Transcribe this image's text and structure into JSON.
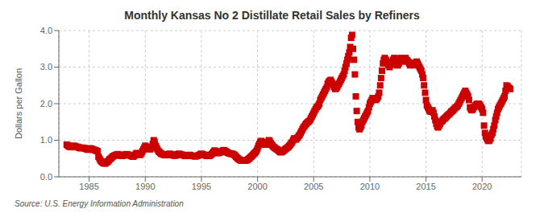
{
  "chart_data": {
    "type": "scatter",
    "title": "Monthly Kansas No 2 Distillate Retail Sales by Refiners",
    "ylabel": "Dollars per Gallon",
    "source": "Source: U.S. Energy Information Administration",
    "color": "#cc0000",
    "marker": "square",
    "grid": true,
    "xlim": [
      1982.3,
      2023.5
    ],
    "xticks": [
      1985,
      1990,
      1995,
      2000,
      2005,
      2010,
      2015,
      2020
    ],
    "ylim": [
      0.0,
      4.0
    ],
    "yticks": [
      {
        "value": 0.0,
        "label": "0.0"
      },
      {
        "value": 1.0,
        "label": "1.0"
      },
      {
        "value": 2.0,
        "label": "2.0"
      },
      {
        "value": 3.0,
        "label": "3.0"
      },
      {
        "value": 4.0,
        "label": "4.0"
      }
    ],
    "x": [
      1983.0,
      1983.08,
      1983.17,
      1983.25,
      1983.33,
      1983.42,
      1983.5,
      1983.58,
      1983.67,
      1983.75,
      1983.83,
      1983.92,
      1984.0,
      1984.08,
      1984.17,
      1984.25,
      1984.33,
      1984.42,
      1984.5,
      1984.58,
      1984.67,
      1984.75,
      1984.83,
      1984.92,
      1985.0,
      1985.08,
      1985.17,
      1985.25,
      1985.33,
      1985.42,
      1985.5,
      1985.58,
      1985.67,
      1985.75,
      1985.83,
      1985.92,
      1986.0,
      1986.08,
      1986.17,
      1986.25,
      1986.33,
      1986.42,
      1986.5,
      1986.58,
      1986.67,
      1986.75,
      1986.83,
      1986.92,
      1987.0,
      1987.08,
      1987.17,
      1987.25,
      1987.33,
      1987.42,
      1987.5,
      1987.58,
      1987.67,
      1987.75,
      1987.83,
      1987.92,
      1988.0,
      1988.08,
      1988.17,
      1988.25,
      1988.33,
      1988.42,
      1988.5,
      1988.58,
      1988.67,
      1988.75,
      1988.83,
      1988.92,
      1989.0,
      1989.08,
      1989.17,
      1989.25,
      1989.33,
      1989.42,
      1989.5,
      1989.58,
      1989.67,
      1989.75,
      1989.83,
      1989.92,
      1990.0,
      1990.08,
      1990.17,
      1990.25,
      1990.33,
      1990.42,
      1990.5,
      1990.58,
      1990.67,
      1990.75,
      1990.83,
      1990.92,
      1991.0,
      1991.08,
      1991.17,
      1991.25,
      1991.33,
      1991.42,
      1991.5,
      1991.58,
      1991.67,
      1991.75,
      1991.83,
      1991.92,
      1992.0,
      1992.08,
      1992.17,
      1992.25,
      1992.33,
      1992.42,
      1992.5,
      1992.58,
      1992.67,
      1992.75,
      1992.83,
      1992.92,
      1993.0,
      1993.08,
      1993.17,
      1993.25,
      1993.33,
      1993.42,
      1993.5,
      1993.58,
      1993.67,
      1993.75,
      1993.83,
      1993.92,
      1994.0,
      1994.08,
      1994.17,
      1994.25,
      1994.33,
      1994.42,
      1994.5,
      1994.58,
      1994.67,
      1994.75,
      1994.83,
      1994.92,
      1995.0,
      1995.08,
      1995.17,
      1995.25,
      1995.33,
      1995.42,
      1995.5,
      1995.58,
      1995.67,
      1995.75,
      1995.83,
      1995.92,
      1996.0,
      1996.08,
      1996.17,
      1996.25,
      1996.33,
      1996.42,
      1996.5,
      1996.58,
      1996.67,
      1996.75,
      1996.83,
      1996.92,
      1997.0,
      1997.08,
      1997.17,
      1997.25,
      1997.33,
      1997.42,
      1997.5,
      1997.58,
      1997.67,
      1997.75,
      1997.83,
      1997.92,
      1998.0,
      1998.08,
      1998.17,
      1998.25,
      1998.33,
      1998.42,
      1998.5,
      1998.58,
      1998.67,
      1998.75,
      1998.83,
      1998.92,
      1999.0,
      1999.08,
      1999.17,
      1999.25,
      1999.33,
      1999.42,
      1999.5,
      1999.58,
      1999.67,
      1999.75,
      1999.83,
      1999.92,
      2000.0,
      2000.08,
      2000.17,
      2000.25,
      2000.33,
      2000.42,
      2000.5,
      2000.58,
      2000.67,
      2000.75,
      2000.83,
      2000.92,
      2001.0,
      2001.08,
      2001.17,
      2001.25,
      2001.33,
      2001.42,
      2001.5,
      2001.58,
      2001.67,
      2001.75,
      2001.83,
      2001.92,
      2002.0,
      2002.08,
      2002.17,
      2002.25,
      2002.33,
      2002.42,
      2002.5,
      2002.58,
      2002.67,
      2002.75,
      2002.83,
      2002.92,
      2003.0,
      2003.08,
      2003.17,
      2003.25,
      2003.33,
      2003.42,
      2003.5,
      2003.58,
      2003.67,
      2003.75,
      2003.83,
      2003.92,
      2004.0,
      2004.08,
      2004.17,
      2004.25,
      2004.33,
      2004.42,
      2004.5,
      2004.58,
      2004.67,
      2004.75,
      2004.83,
      2004.92,
      2005.0,
      2005.08,
      2005.17,
      2005.25,
      2005.33,
      2005.42,
      2005.5,
      2005.58,
      2005.67,
      2005.75,
      2005.83,
      2005.92,
      2006.0,
      2006.08,
      2006.17,
      2006.25,
      2006.33,
      2006.42,
      2006.5,
      2006.58,
      2006.67,
      2006.75,
      2006.83,
      2006.92,
      2007.0,
      2007.08,
      2007.17,
      2007.25,
      2007.33,
      2007.42,
      2007.5,
      2007.58,
      2007.67,
      2007.75,
      2007.83,
      2007.92,
      2008.0,
      2008.08,
      2008.17,
      2008.25,
      2008.33,
      2008.42,
      2008.5,
      2008.58,
      2008.67,
      2008.75,
      2008.83,
      2008.92,
      2009.0,
      2009.08,
      2009.17,
      2009.25,
      2009.33,
      2009.42,
      2009.5,
      2009.58,
      2009.67,
      2009.75,
      2009.83,
      2009.92,
      2010.0,
      2010.08,
      2010.17,
      2010.25,
      2010.33,
      2010.42,
      2010.5,
      2010.58,
      2010.67,
      2010.75,
      2010.83,
      2010.92,
      2011.0,
      2011.08,
      2011.17,
      2011.25,
      2011.33,
      2011.42,
      2011.5,
      2011.58,
      2011.67,
      2011.75,
      2011.83,
      2011.92,
      2012.0,
      2012.08,
      2012.17,
      2012.25,
      2012.33,
      2012.42,
      2012.5,
      2012.58,
      2012.67,
      2012.75,
      2012.83,
      2012.92,
      2013.0,
      2013.08,
      2013.17,
      2013.25,
      2013.33,
      2013.42,
      2013.5,
      2013.58,
      2013.67,
      2013.75,
      2013.83,
      2013.92,
      2014.0,
      2014.08,
      2014.17,
      2014.25,
      2014.33,
      2014.42,
      2014.5,
      2014.58,
      2014.67,
      2014.75,
      2014.83,
      2014.92,
      2015.0,
      2015.08,
      2015.17,
      2015.25,
      2015.33,
      2015.42,
      2015.5,
      2015.58,
      2015.67,
      2015.75,
      2015.83,
      2015.92,
      2016.0,
      2016.08,
      2016.17,
      2016.25,
      2016.33,
      2016.42,
      2016.5,
      2016.58,
      2016.67,
      2016.75,
      2016.83,
      2016.92,
      2017.0,
      2017.08,
      2017.17,
      2017.25,
      2017.33,
      2017.42,
      2017.5,
      2017.58,
      2017.67,
      2017.75,
      2017.83,
      2017.92,
      2018.0,
      2018.08,
      2018.17,
      2018.25,
      2018.33,
      2018.42,
      2018.5,
      2018.58,
      2018.67,
      2018.75,
      2018.83,
      2018.92,
      2019.0,
      2019.08,
      2019.17,
      2019.25,
      2019.33,
      2019.42,
      2019.5,
      2019.58,
      2019.67,
      2019.75,
      2019.83,
      2019.92,
      2020.0,
      2020.08,
      2020.17,
      2020.25,
      2020.33,
      2020.42,
      2020.5,
      2020.58,
      2020.67,
      2020.75,
      2020.83,
      2020.92,
      2021.0,
      2021.08,
      2021.17,
      2021.25,
      2021.33,
      2021.42,
      2021.5,
      2021.58,
      2021.67,
      2021.75,
      2021.83,
      2021.92,
      2022.0,
      2022.08,
      2022.17,
      2022.25,
      2022.33,
      2022.42,
      2022.5
    ],
    "values": [
      0.88,
      0.86,
      0.84,
      0.82,
      0.83,
      0.81,
      0.83,
      0.84,
      0.85,
      0.83,
      0.82,
      0.81,
      0.82,
      0.8,
      0.79,
      0.78,
      0.8,
      0.79,
      0.79,
      0.78,
      0.77,
      0.76,
      0.75,
      0.74,
      0.76,
      0.78,
      0.77,
      0.76,
      0.75,
      0.74,
      0.73,
      0.72,
      0.71,
      0.7,
      0.55,
      0.5,
      0.45,
      0.42,
      0.4,
      0.38,
      0.37,
      0.36,
      0.38,
      0.4,
      0.42,
      0.45,
      0.48,
      0.5,
      0.52,
      0.55,
      0.57,
      0.58,
      0.59,
      0.6,
      0.61,
      0.62,
      0.6,
      0.59,
      0.58,
      0.57,
      0.58,
      0.59,
      0.6,
      0.61,
      0.62,
      0.61,
      0.6,
      0.59,
      0.58,
      0.57,
      0.56,
      0.55,
      0.57,
      0.6,
      0.63,
      0.65,
      0.63,
      0.61,
      0.6,
      0.61,
      0.65,
      0.7,
      0.75,
      0.8,
      0.85,
      0.82,
      0.79,
      0.77,
      0.76,
      0.75,
      0.78,
      0.82,
      0.9,
      1.0,
      0.95,
      0.85,
      0.8,
      0.75,
      0.7,
      0.68,
      0.65,
      0.63,
      0.62,
      0.61,
      0.6,
      0.6,
      0.59,
      0.6,
      0.61,
      0.62,
      0.63,
      0.62,
      0.61,
      0.6,
      0.59,
      0.58,
      0.58,
      0.59,
      0.6,
      0.62,
      0.63,
      0.62,
      0.61,
      0.6,
      0.6,
      0.59,
      0.58,
      0.57,
      0.57,
      0.58,
      0.59,
      0.6,
      0.59,
      0.58,
      0.57,
      0.57,
      0.57,
      0.56,
      0.56,
      0.57,
      0.58,
      0.59,
      0.6,
      0.62,
      0.63,
      0.62,
      0.61,
      0.6,
      0.59,
      0.58,
      0.58,
      0.57,
      0.57,
      0.58,
      0.6,
      0.62,
      0.65,
      0.68,
      0.72,
      0.7,
      0.67,
      0.65,
      0.65,
      0.66,
      0.67,
      0.68,
      0.7,
      0.72,
      0.73,
      0.71,
      0.7,
      0.68,
      0.66,
      0.65,
      0.64,
      0.63,
      0.63,
      0.63,
      0.62,
      0.6,
      0.58,
      0.55,
      0.52,
      0.5,
      0.48,
      0.46,
      0.45,
      0.45,
      0.44,
      0.44,
      0.44,
      0.44,
      0.45,
      0.46,
      0.48,
      0.5,
      0.52,
      0.55,
      0.57,
      0.6,
      0.63,
      0.65,
      0.68,
      0.72,
      0.78,
      0.85,
      0.9,
      0.95,
      0.98,
      0.95,
      0.92,
      0.9,
      0.88,
      0.88,
      0.9,
      0.95,
      1.0,
      0.98,
      0.92,
      0.88,
      0.85,
      0.82,
      0.8,
      0.78,
      0.76,
      0.75,
      0.73,
      0.7,
      0.68,
      0.67,
      0.68,
      0.7,
      0.72,
      0.74,
      0.76,
      0.78,
      0.8,
      0.82,
      0.85,
      0.88,
      0.92,
      0.95,
      1.0,
      1.05,
      1.05,
      1.02,
      1.05,
      1.08,
      1.12,
      1.15,
      1.2,
      1.25,
      1.3,
      1.35,
      1.38,
      1.42,
      1.45,
      1.48,
      1.5,
      1.52,
      1.55,
      1.6,
      1.65,
      1.7,
      1.75,
      1.8,
      1.85,
      1.9,
      1.92,
      1.95,
      2.0,
      2.1,
      2.15,
      2.2,
      2.25,
      2.3,
      2.35,
      2.4,
      2.45,
      2.55,
      2.6,
      2.62,
      2.65,
      2.6,
      2.55,
      2.5,
      2.45,
      2.4,
      2.42,
      2.45,
      2.5,
      2.55,
      2.6,
      2.65,
      2.7,
      2.75,
      2.8,
      2.9,
      3.0,
      3.1,
      3.2,
      3.3,
      3.4,
      3.55,
      3.8,
      3.88,
      3.5,
      3.2,
      2.8,
      2.2,
      1.8,
      1.5,
      1.35,
      1.3,
      1.35,
      1.4,
      1.5,
      1.55,
      1.6,
      1.65,
      1.7,
      1.75,
      1.8,
      1.9,
      2.0,
      2.05,
      2.1,
      2.15,
      2.15,
      2.12,
      2.1,
      2.12,
      2.15,
      2.2,
      2.3,
      2.5,
      2.7,
      2.9,
      3.1,
      3.2,
      3.25,
      3.2,
      3.15,
      3.1,
      3.05,
      3.0,
      3.05,
      3.1,
      3.15,
      3.2,
      3.25,
      3.2,
      3.1,
      3.05,
      3.05,
      3.1,
      3.2,
      3.25,
      3.22,
      3.15,
      3.18,
      3.22,
      3.25,
      3.2,
      3.18,
      3.15,
      3.1,
      3.05,
      3.08,
      3.1,
      3.12,
      3.05,
      3.1,
      3.12,
      3.15,
      3.1,
      3.05,
      3.0,
      2.95,
      2.9,
      2.8,
      2.7,
      2.5,
      2.3,
      2.1,
      1.95,
      1.9,
      1.85,
      1.8,
      1.78,
      1.8,
      1.82,
      1.75,
      1.65,
      1.55,
      1.45,
      1.38,
      1.35,
      1.4,
      1.45,
      1.5,
      1.52,
      1.55,
      1.58,
      1.6,
      1.62,
      1.65,
      1.68,
      1.7,
      1.72,
      1.75,
      1.78,
      1.8,
      1.82,
      1.85,
      1.88,
      1.9,
      1.92,
      1.95,
      2.0,
      2.05,
      2.1,
      2.15,
      2.2,
      2.25,
      2.3,
      2.35,
      2.3,
      2.25,
      2.2,
      2.1,
      1.9,
      1.85,
      1.82,
      1.85,
      1.9,
      1.92,
      1.95,
      1.98,
      2.0,
      2.0,
      1.98,
      1.95,
      1.9,
      1.85,
      1.75,
      1.4,
      1.2,
      1.1,
      1.05,
      1.0,
      0.98,
      1.0,
      1.05,
      1.15,
      1.2,
      1.3,
      1.4,
      1.55,
      1.65,
      1.75,
      1.85,
      1.9,
      1.95,
      2.0,
      2.05,
      2.1,
      2.15,
      2.2,
      2.35,
      2.5,
      2.48,
      2.45,
      2.42,
      2.4
    ]
  }
}
